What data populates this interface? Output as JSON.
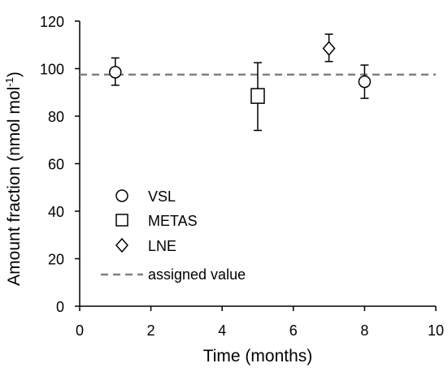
{
  "chart_data": {
    "type": "scatter",
    "xlabel": "Time (months)",
    "ylabel_main": "Amount fraction (nmol mol",
    "ylabel_sup": "-1",
    "ylabel_close": ")",
    "xlim": [
      0,
      10
    ],
    "ylim": [
      0,
      120
    ],
    "xticks": [
      0,
      2,
      4,
      6,
      8,
      10
    ],
    "yticks": [
      0,
      20,
      40,
      60,
      80,
      100,
      120
    ],
    "grid": false,
    "legend_position": "left",
    "series": [
      {
        "name": "VSL",
        "marker": "circle",
        "points": [
          {
            "x": 1,
            "y": 98.5,
            "err_low": 93,
            "err_high": 104.5
          },
          {
            "x": 8,
            "y": 94.5,
            "err_low": 87.5,
            "err_high": 101.5
          }
        ]
      },
      {
        "name": "METAS",
        "marker": "square",
        "points": [
          {
            "x": 5,
            "y": 88.5,
            "err_low": 74,
            "err_high": 102.5
          }
        ]
      },
      {
        "name": "LNE",
        "marker": "diamond",
        "points": [
          {
            "x": 7,
            "y": 108.5,
            "err_low": 103,
            "err_high": 114.5
          }
        ]
      }
    ],
    "reference_line": {
      "name": "assigned value",
      "y": 97.5,
      "style": "dashed",
      "color": "#808080"
    }
  }
}
